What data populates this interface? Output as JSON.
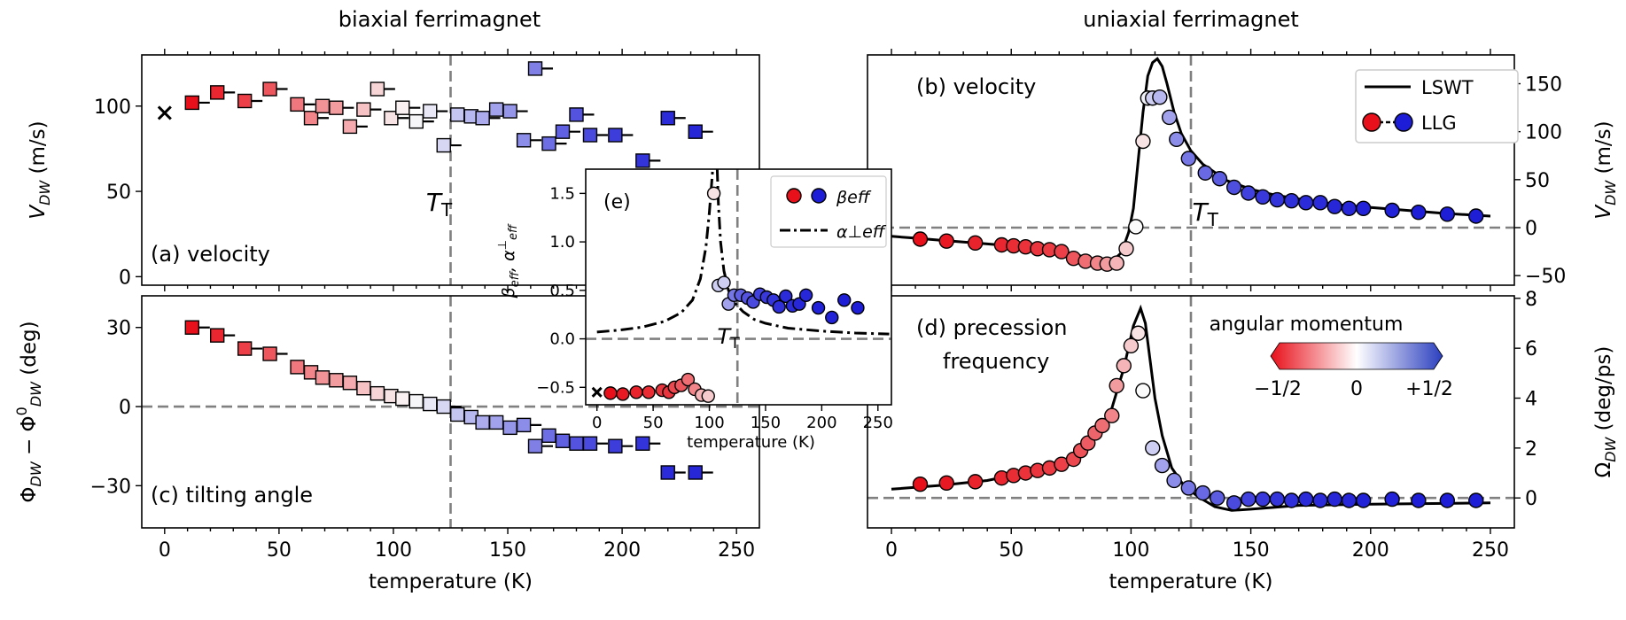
{
  "headers": {
    "left": "biaxial ferrimagnet",
    "right": "uniaxial ferrimagnet"
  },
  "colorbar": {
    "title": "angular momentum",
    "ticks": [
      "−1/2",
      "0",
      "+1/2"
    ],
    "stops": [
      "#e8101a",
      "#ffffff",
      "#2b3fbf"
    ]
  },
  "legend_b": {
    "line": "LSWT",
    "markers": "LLG"
  },
  "legend_e": {
    "markers": "βeff",
    "line": "α⊥eff"
  },
  "chart_data": [
    {
      "id": "a",
      "type": "scatter",
      "marker": "square",
      "title": "(a) velocity",
      "xlabel": "temperature (K)",
      "ylabel": "V_DW (m/s)",
      "xlim": [
        -10,
        260
      ],
      "ylim": [
        -5,
        130
      ],
      "xticks": [
        0,
        50,
        100,
        150,
        200,
        250
      ],
      "yticks": [
        0,
        50,
        100
      ],
      "tt_label": "T_T",
      "tt": 125,
      "ref_x": 0,
      "ref_y": 96,
      "ref_label": "x",
      "points": [
        [
          12,
          102
        ],
        [
          23,
          108
        ],
        [
          35,
          103
        ],
        [
          46,
          110
        ],
        [
          58,
          101
        ],
        [
          64,
          93
        ],
        [
          69,
          100
        ],
        [
          75,
          99
        ],
        [
          81,
          88
        ],
        [
          87,
          98
        ],
        [
          93,
          110
        ],
        [
          99,
          93
        ],
        [
          104,
          99
        ],
        [
          110,
          91
        ],
        [
          116,
          97
        ],
        [
          122,
          77
        ],
        [
          128,
          95
        ],
        [
          134,
          94
        ],
        [
          139,
          93
        ],
        [
          145,
          98
        ],
        [
          151,
          97
        ],
        [
          157,
          80
        ],
        [
          162,
          122
        ],
        [
          168,
          78
        ],
        [
          174,
          85
        ],
        [
          180,
          95
        ],
        [
          186,
          83
        ],
        [
          197,
          83
        ],
        [
          209,
          68
        ],
        [
          220,
          93
        ],
        [
          232,
          85
        ]
      ],
      "m": [
        -0.5,
        -0.45,
        -0.4,
        -0.35,
        -0.28,
        -0.25,
        -0.22,
        -0.2,
        -0.17,
        -0.12,
        -0.08,
        -0.05,
        -0.02,
        0.01,
        0.04,
        0.08,
        0.12,
        0.15,
        0.18,
        0.2,
        0.23,
        0.25,
        0.28,
        0.32,
        0.35,
        0.38,
        0.4,
        0.43,
        0.45,
        0.47,
        0.48
      ]
    },
    {
      "id": "b",
      "type": "line+scatter",
      "marker": "circle",
      "title": "(b) velocity",
      "xlabel": "temperature (K)",
      "ylabel": "V_DW (m/s)",
      "xlim": [
        -10,
        260
      ],
      "ylim": [
        -60,
        180
      ],
      "xticks": [
        0,
        50,
        100,
        150,
        200,
        250
      ],
      "yticks": [
        -50,
        0,
        50,
        100,
        150
      ],
      "tt_label": "T_T",
      "tt": 125,
      "points": [
        [
          12,
          -12
        ],
        [
          23,
          -14
        ],
        [
          35,
          -16
        ],
        [
          46,
          -18
        ],
        [
          51,
          -19
        ],
        [
          56,
          -20
        ],
        [
          61,
          -22
        ],
        [
          66,
          -23
        ],
        [
          71,
          -25
        ],
        [
          76,
          -32
        ],
        [
          81,
          -35
        ],
        [
          86,
          -37
        ],
        [
          90,
          -38
        ],
        [
          94,
          -37
        ],
        [
          98,
          -22
        ],
        [
          102,
          1
        ],
        [
          105,
          90
        ],
        [
          107,
          135
        ],
        [
          109,
          135
        ],
        [
          112,
          136
        ],
        [
          116,
          115
        ],
        [
          119,
          92
        ],
        [
          124,
          72
        ],
        [
          131,
          57
        ],
        [
          137,
          51
        ],
        [
          143,
          42
        ],
        [
          149,
          36
        ],
        [
          155,
          32
        ],
        [
          161,
          29
        ],
        [
          167,
          28
        ],
        [
          173,
          26
        ],
        [
          179,
          26
        ],
        [
          185,
          22
        ],
        [
          191,
          20
        ],
        [
          197,
          20
        ],
        [
          209,
          18
        ],
        [
          220,
          16
        ],
        [
          232,
          14
        ],
        [
          244,
          12
        ]
      ],
      "m": [
        -0.5,
        -0.48,
        -0.46,
        -0.45,
        -0.44,
        -0.43,
        -0.42,
        -0.41,
        -0.4,
        -0.35,
        -0.3,
        -0.25,
        -0.2,
        -0.15,
        -0.1,
        0.0,
        -0.05,
        0.02,
        0.1,
        0.15,
        0.2,
        0.25,
        0.3,
        0.33,
        0.36,
        0.39,
        0.42,
        0.44,
        0.45,
        0.46,
        0.47,
        0.47,
        0.48,
        0.48,
        0.49,
        0.49,
        0.5,
        0.5,
        0.5
      ],
      "curve": [
        [
          0,
          -9
        ],
        [
          10,
          -11
        ],
        [
          20,
          -13
        ],
        [
          30,
          -15
        ],
        [
          40,
          -17
        ],
        [
          50,
          -19
        ],
        [
          60,
          -22
        ],
        [
          70,
          -25
        ],
        [
          80,
          -30
        ],
        [
          88,
          -35
        ],
        [
          93,
          -33
        ],
        [
          96,
          -26
        ],
        [
          99,
          -5
        ],
        [
          101,
          20
        ],
        [
          103,
          70
        ],
        [
          105,
          120
        ],
        [
          107,
          158
        ],
        [
          109,
          172
        ],
        [
          111,
          176
        ],
        [
          113,
          168
        ],
        [
          115,
          150
        ],
        [
          118,
          120
        ],
        [
          121,
          98
        ],
        [
          125,
          80
        ],
        [
          130,
          66
        ],
        [
          140,
          49
        ],
        [
          150,
          40
        ],
        [
          160,
          34
        ],
        [
          175,
          28
        ],
        [
          190,
          23
        ],
        [
          210,
          19
        ],
        [
          230,
          15
        ],
        [
          250,
          12
        ]
      ]
    },
    {
      "id": "c",
      "type": "scatter",
      "marker": "square",
      "title": "(c) tilting angle",
      "xlabel": "temperature (K)",
      "ylabel": "Φ_DW − Φ⁰_DW (deg)",
      "xlim": [
        -10,
        260
      ],
      "ylim": [
        -46,
        42
      ],
      "xticks": [
        0,
        50,
        100,
        150,
        200,
        250
      ],
      "yticks": [
        -30,
        0,
        30
      ],
      "tt": 125,
      "points": [
        [
          12,
          30
        ],
        [
          23,
          27
        ],
        [
          35,
          22
        ],
        [
          46,
          20
        ],
        [
          58,
          15
        ],
        [
          64,
          13
        ],
        [
          69,
          11
        ],
        [
          75,
          10
        ],
        [
          81,
          9
        ],
        [
          87,
          7
        ],
        [
          93,
          5
        ],
        [
          99,
          4
        ],
        [
          104,
          3
        ],
        [
          110,
          2
        ],
        [
          116,
          1
        ],
        [
          122,
          0
        ],
        [
          128,
          -3
        ],
        [
          134,
          -4
        ],
        [
          139,
          -6
        ],
        [
          145,
          -6
        ],
        [
          151,
          -8
        ],
        [
          157,
          -7
        ],
        [
          162,
          -15
        ],
        [
          168,
          -11
        ],
        [
          174,
          -13
        ],
        [
          180,
          -14
        ],
        [
          186,
          -14
        ],
        [
          197,
          -15
        ],
        [
          209,
          -14
        ],
        [
          220,
          -25
        ],
        [
          232,
          -25
        ]
      ],
      "m": [
        -0.5,
        -0.45,
        -0.4,
        -0.35,
        -0.28,
        -0.25,
        -0.22,
        -0.2,
        -0.17,
        -0.12,
        -0.08,
        -0.05,
        -0.02,
        0.01,
        0.04,
        0.08,
        0.12,
        0.15,
        0.18,
        0.2,
        0.23,
        0.25,
        0.28,
        0.32,
        0.35,
        0.38,
        0.4,
        0.43,
        0.45,
        0.47,
        0.48
      ]
    },
    {
      "id": "d",
      "type": "line+scatter",
      "marker": "circle",
      "title": "(d) precession frequency",
      "xlabel": "temperature (K)",
      "ylabel": "Ω_DW (deg/ps)",
      "xlim": [
        -10,
        260
      ],
      "ylim": [
        -1.2,
        8.1
      ],
      "xticks": [
        0,
        50,
        100,
        150,
        200,
        250
      ],
      "yticks": [
        0,
        2,
        4,
        6,
        8
      ],
      "tt": 125,
      "points": [
        [
          12,
          0.55
        ],
        [
          23,
          0.6
        ],
        [
          35,
          0.65
        ],
        [
          46,
          0.8
        ],
        [
          51,
          0.9
        ],
        [
          56,
          1.0
        ],
        [
          61,
          1.1
        ],
        [
          66,
          1.2
        ],
        [
          71,
          1.35
        ],
        [
          76,
          1.55
        ],
        [
          79,
          1.9
        ],
        [
          82,
          2.2
        ],
        [
          85,
          2.6
        ],
        [
          88,
          2.9
        ],
        [
          92,
          3.3
        ],
        [
          94,
          4.5
        ],
        [
          97,
          5.3
        ],
        [
          100,
          6.1
        ],
        [
          103,
          6.6
        ],
        [
          105,
          4.3
        ],
        [
          109,
          2.0
        ],
        [
          113,
          1.3
        ],
        [
          118,
          0.7
        ],
        [
          124,
          0.4
        ],
        [
          130,
          0.2
        ],
        [
          136,
          0.0
        ],
        [
          143,
          -0.2
        ],
        [
          149,
          -0.05
        ],
        [
          155,
          -0.05
        ],
        [
          161,
          -0.05
        ],
        [
          167,
          -0.1
        ],
        [
          173,
          -0.05
        ],
        [
          179,
          -0.1
        ],
        [
          185,
          -0.05
        ],
        [
          191,
          -0.1
        ],
        [
          197,
          -0.1
        ],
        [
          209,
          -0.05
        ],
        [
          220,
          -0.1
        ],
        [
          232,
          -0.1
        ],
        [
          244,
          -0.1
        ]
      ],
      "m": [
        -0.5,
        -0.48,
        -0.46,
        -0.45,
        -0.44,
        -0.43,
        -0.42,
        -0.41,
        -0.4,
        -0.38,
        -0.36,
        -0.34,
        -0.32,
        -0.3,
        -0.25,
        -0.2,
        -0.15,
        -0.1,
        -0.05,
        0.0,
        0.1,
        0.2,
        0.25,
        0.3,
        0.33,
        0.36,
        0.4,
        0.42,
        0.44,
        0.45,
        0.46,
        0.47,
        0.47,
        0.48,
        0.48,
        0.49,
        0.49,
        0.5,
        0.5,
        0.5
      ],
      "curve": [
        [
          0,
          0.35
        ],
        [
          20,
          0.5
        ],
        [
          40,
          0.7
        ],
        [
          60,
          1.1
        ],
        [
          75,
          1.6
        ],
        [
          85,
          2.4
        ],
        [
          92,
          3.6
        ],
        [
          97,
          5.2
        ],
        [
          101,
          6.9
        ],
        [
          104,
          7.6
        ],
        [
          106,
          7.0
        ],
        [
          108,
          5.5
        ],
        [
          110,
          4.0
        ],
        [
          113,
          2.5
        ],
        [
          117,
          1.2
        ],
        [
          122,
          0.5
        ],
        [
          128,
          0.05
        ],
        [
          135,
          -0.35
        ],
        [
          142,
          -0.5
        ],
        [
          150,
          -0.45
        ],
        [
          170,
          -0.3
        ],
        [
          200,
          -0.25
        ],
        [
          250,
          -0.2
        ]
      ]
    },
    {
      "id": "e",
      "type": "line+scatter",
      "marker": "circle",
      "inset": true,
      "title": "(e)",
      "xlabel": "temperature (K)",
      "ylabel": "βeff, α⊥eff",
      "xlim": [
        -10,
        262
      ],
      "ylim": [
        -0.68,
        1.75
      ],
      "xticks": [
        0,
        50,
        100,
        150,
        200,
        250
      ],
      "yticks": [
        -0.5,
        0.0,
        0.5,
        1.0,
        1.5
      ],
      "tt_label": "T_T",
      "tt": 125,
      "ref_x": 0,
      "ref_y": -0.55,
      "ref_label": "x",
      "points": [
        [
          12,
          -0.56
        ],
        [
          23,
          -0.57
        ],
        [
          35,
          -0.55
        ],
        [
          46,
          -0.55
        ],
        [
          58,
          -0.53
        ],
        [
          64,
          -0.55
        ],
        [
          69,
          -0.5
        ],
        [
          75,
          -0.48
        ],
        [
          81,
          -0.42
        ],
        [
          87,
          -0.52
        ],
        [
          93,
          -0.58
        ],
        [
          99,
          -0.59
        ],
        [
          104,
          1.5
        ],
        [
          108,
          0.55
        ],
        [
          113,
          0.58
        ],
        [
          117,
          0.36
        ],
        [
          122,
          0.45
        ],
        [
          128,
          0.45
        ],
        [
          134,
          0.42
        ],
        [
          139,
          0.38
        ],
        [
          145,
          0.46
        ],
        [
          151,
          0.43
        ],
        [
          157,
          0.4
        ],
        [
          162,
          0.33
        ],
        [
          168,
          0.44
        ],
        [
          174,
          0.34
        ],
        [
          180,
          0.36
        ],
        [
          186,
          0.45
        ],
        [
          197,
          0.32
        ],
        [
          209,
          0.22
        ],
        [
          220,
          0.4
        ],
        [
          232,
          0.32
        ]
      ],
      "m": [
        -0.5,
        -0.48,
        -0.46,
        -0.44,
        -0.42,
        -0.42,
        -0.38,
        -0.35,
        -0.3,
        -0.25,
        -0.15,
        -0.1,
        -0.05,
        0.1,
        0.1,
        0.2,
        0.3,
        0.35,
        0.38,
        0.4,
        0.42,
        0.44,
        0.45,
        0.46,
        0.47,
        0.47,
        0.48,
        0.48,
        0.49,
        0.49,
        0.5,
        0.5
      ],
      "curve": [
        [
          0,
          0.07
        ],
        [
          20,
          0.09
        ],
        [
          40,
          0.12
        ],
        [
          60,
          0.18
        ],
        [
          75,
          0.27
        ],
        [
          85,
          0.4
        ],
        [
          92,
          0.62
        ],
        [
          97,
          0.95
        ],
        [
          100,
          1.3
        ],
        [
          102,
          1.6
        ],
        [
          103,
          1.75
        ]
      ],
      "curve2": [
        [
          107,
          1.75
        ],
        [
          108,
          1.4
        ],
        [
          110,
          1.0
        ],
        [
          113,
          0.7
        ],
        [
          117,
          0.5
        ],
        [
          122,
          0.38
        ],
        [
          130,
          0.28
        ],
        [
          140,
          0.2
        ],
        [
          150,
          0.16
        ],
        [
          170,
          0.11
        ],
        [
          200,
          0.08
        ],
        [
          230,
          0.06
        ],
        [
          260,
          0.05
        ]
      ]
    }
  ]
}
